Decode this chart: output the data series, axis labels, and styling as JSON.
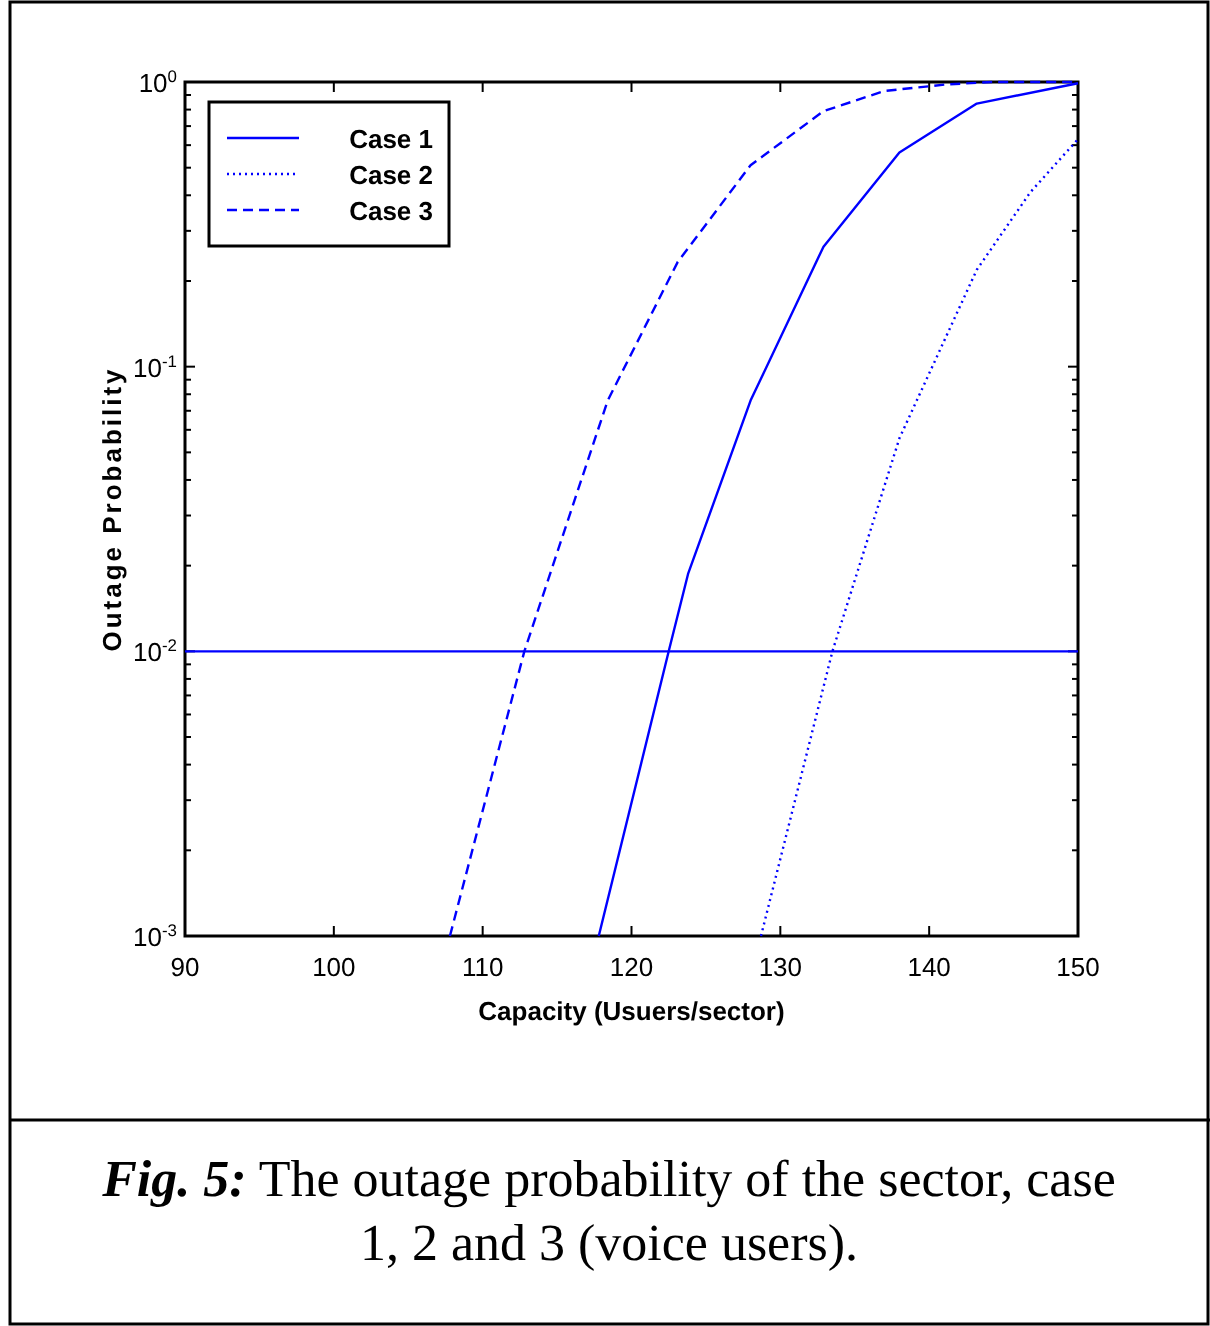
{
  "chart_data": {
    "type": "line",
    "xlabel": "Capacity  (Usuers/sector)",
    "ylabel": "Outage Probability",
    "annotations": [
      "Fig. 5: The outage probability of the sector, case 1, 2 and 3 (voice users)."
    ],
    "xlim": [
      90,
      150
    ],
    "xticks": [
      90,
      100,
      110,
      120,
      130,
      140,
      150
    ],
    "ylim": [
      0.001,
      1
    ],
    "log": "y",
    "yticks": [
      {
        "value": 0.001,
        "label": "10$^{-3}$"
      },
      {
        "value": 0.002,
        "label": null
      },
      {
        "value": 0.003,
        "label": null
      },
      {
        "value": 0.004,
        "label": null
      },
      {
        "value": 0.005,
        "label": null
      },
      {
        "value": 0.006,
        "label": null
      },
      {
        "value": 0.007,
        "label": null
      },
      {
        "value": 0.008,
        "label": null
      },
      {
        "value": 0.009,
        "label": null
      },
      {
        "value": 0.01,
        "label": "10$^{-2}$"
      },
      {
        "value": 0.02,
        "label": null
      },
      {
        "value": 0.03,
        "label": null
      },
      {
        "value": 0.04,
        "label": null
      },
      {
        "value": 0.05,
        "label": null
      },
      {
        "value": 0.06,
        "label": null
      },
      {
        "value": 0.07,
        "label": null
      },
      {
        "value": 0.08,
        "label": null
      },
      {
        "value": 0.09,
        "label": null
      },
      {
        "value": 0.1,
        "label": "10$^{-1}$"
      },
      {
        "value": 0.2,
        "label": null
      },
      {
        "value": 0.3,
        "label": null
      },
      {
        "value": 0.4,
        "label": null
      },
      {
        "value": 0.5,
        "label": null
      },
      {
        "value": 0.6,
        "label": null
      },
      {
        "value": 0.7,
        "label": null
      },
      {
        "value": 0.8,
        "label": null
      },
      {
        "value": 0.9,
        "label": null
      },
      {
        "value": 1,
        "label": "10$^{0}$"
      }
    ],
    "grid": false,
    "legend": "top left",
    "marker": "none",
    "ref_lines": [
      {
        "axis": "y",
        "value": 0.01,
        "color": "#0000ff",
        "line_style": "solid"
      }
    ],
    "series": [
      {
        "name": "Case 1",
        "color": "#0000ff",
        "line_style": "solid",
        "x": [
          117.8,
          122.5,
          123.8,
          128.0,
          132.9,
          138.0,
          143.2,
          150
        ],
        "values": [
          0.001,
          0.01,
          0.0187,
          0.076,
          0.264,
          0.565,
          0.84,
          0.99
        ]
      },
      {
        "name": "Case 2",
        "color": "#0000ff",
        "line_style": "dotted",
        "x": [
          128.7,
          133.5,
          138.0,
          143.2,
          146.8,
          150
        ],
        "values": [
          0.001,
          0.01,
          0.056,
          0.219,
          0.41,
          0.63
        ]
      },
      {
        "name": "Case 3",
        "color": "#0000ff",
        "line_style": "dashed",
        "x": [
          107.8,
          112.8,
          118.4,
          123.1,
          128.0,
          132.9,
          137.0,
          141.1,
          144.2,
          150
        ],
        "values": [
          0.001,
          0.01,
          0.076,
          0.233,
          0.51,
          0.79,
          0.93,
          0.98,
          1,
          1
        ]
      }
    ]
  }
}
